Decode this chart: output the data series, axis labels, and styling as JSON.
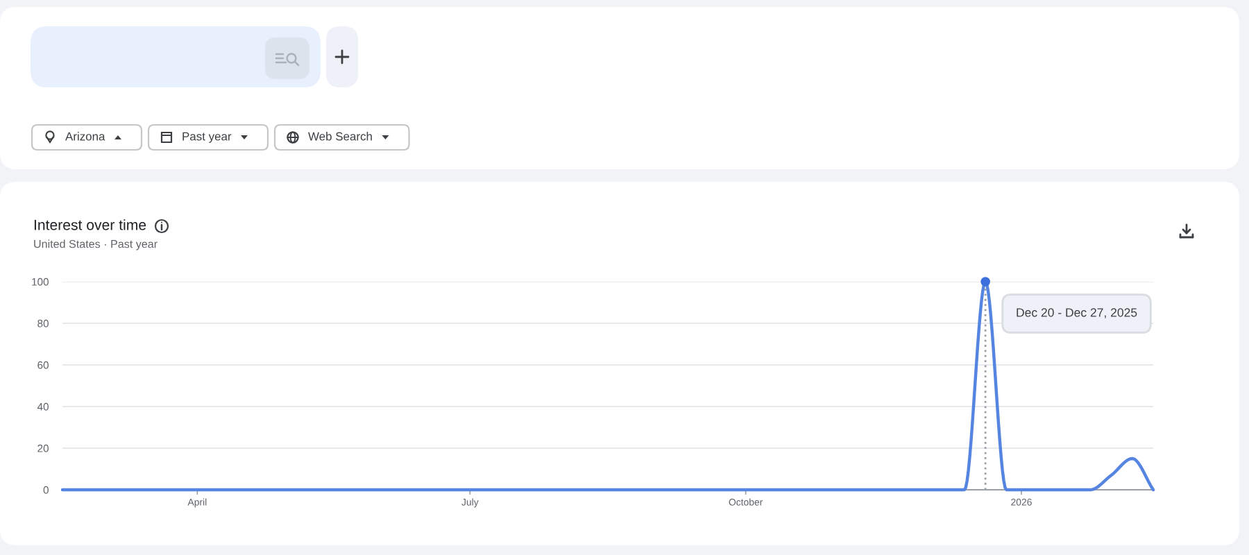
{
  "chart_data": {
    "type": "line",
    "title": "Interest over time",
    "subtitle": "United States · Past year",
    "x": [
      "2025-02-15",
      "2025-02-22",
      "2025-03-01",
      "2025-03-08",
      "2025-03-15",
      "2025-03-22",
      "2025-03-29",
      "2025-04-05",
      "2025-04-12",
      "2025-04-19",
      "2025-04-26",
      "2025-05-03",
      "2025-05-10",
      "2025-05-17",
      "2025-05-24",
      "2025-05-31",
      "2025-06-07",
      "2025-06-14",
      "2025-06-21",
      "2025-06-28",
      "2025-07-05",
      "2025-07-12",
      "2025-07-19",
      "2025-07-26",
      "2025-08-02",
      "2025-08-09",
      "2025-08-16",
      "2025-08-23",
      "2025-08-30",
      "2025-09-06",
      "2025-09-13",
      "2025-09-20",
      "2025-09-27",
      "2025-10-04",
      "2025-10-11",
      "2025-10-18",
      "2025-10-25",
      "2025-11-01",
      "2025-11-08",
      "2025-11-15",
      "2025-11-22",
      "2025-11-29",
      "2025-12-06",
      "2025-12-13",
      "2025-12-20",
      "2025-12-27",
      "2026-01-03",
      "2026-01-10",
      "2026-01-17",
      "2026-01-24",
      "2026-01-31",
      "2026-02-07",
      "2026-02-14"
    ],
    "series": [
      {
        "color": "#5585e0",
        "values": [
          0,
          0,
          0,
          0,
          0,
          0,
          0,
          0,
          0,
          0,
          0,
          0,
          0,
          0,
          0,
          0,
          0,
          0,
          0,
          0,
          0,
          0,
          0,
          0,
          0,
          0,
          0,
          0,
          0,
          0,
          0,
          0,
          0,
          0,
          0,
          0,
          0,
          0,
          0,
          0,
          0,
          0,
          0,
          0,
          100,
          0,
          0,
          0,
          0,
          0,
          7,
          15,
          0
        ]
      },
      {
        "type": "scatter",
        "color": "#3a6fdc",
        "x": [
          "2025-12-20"
        ],
        "values": [
          100
        ]
      }
    ],
    "xlim": [
      "2025-02-15",
      "2026-02-14"
    ],
    "xticks": [
      {
        "value": "2025-04-01",
        "label": "April"
      },
      {
        "value": "2025-07-01",
        "label": "July"
      },
      {
        "value": "2025-10-01",
        "label": "October"
      },
      {
        "value": "2026-01-01",
        "label": "2026"
      }
    ],
    "ylim": [
      0,
      100
    ],
    "yticks": [
      0,
      20,
      40,
      60,
      80,
      100
    ],
    "grid": "y",
    "ref_lines": [
      {
        "axis": "x",
        "value": "2025-12-20",
        "color": "#9aa0a6",
        "line_style": "dotted"
      }
    ],
    "annotations": [
      "Arizona",
      "Past year",
      "Web Search",
      "Dec 20 - Dec 27, 2025"
    ]
  }
}
